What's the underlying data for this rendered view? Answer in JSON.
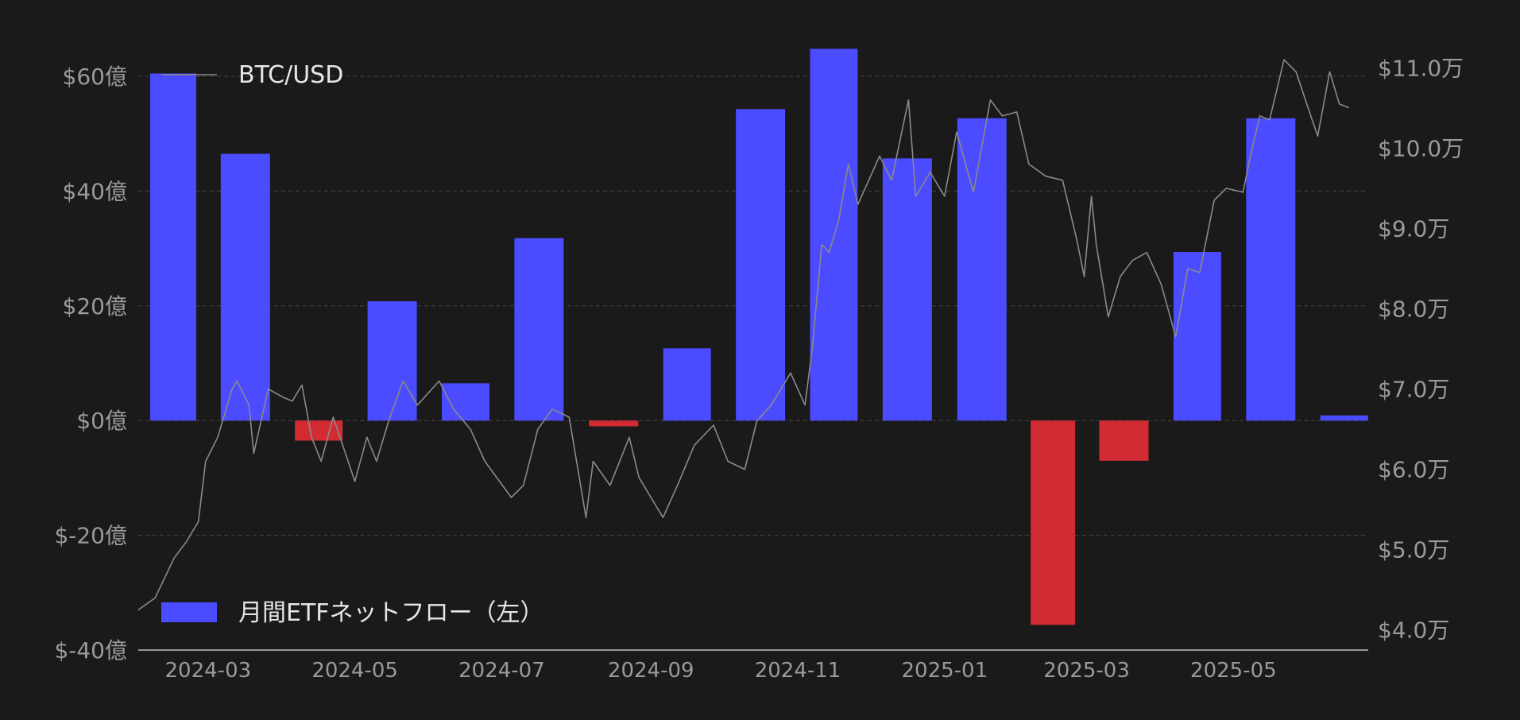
{
  "chart_data": {
    "type": "bar",
    "categories": [
      "2024-02",
      "2024-03",
      "2024-04",
      "2024-05",
      "2024-06",
      "2024-07",
      "2024-08",
      "2024-09",
      "2024-10",
      "2024-11",
      "2024-12",
      "2025-01",
      "2025-02",
      "2025-03",
      "2025-04",
      "2025-05",
      "2025-06"
    ],
    "series": [
      {
        "name": "月間ETFネットフロー（左）",
        "type": "bar",
        "axis": "left",
        "values": [
          60.5,
          46.5,
          -3.5,
          20.8,
          6.5,
          31.8,
          -1.0,
          12.6,
          54.3,
          64.8,
          45.7,
          52.7,
          -35.6,
          -7.0,
          29.4,
          52.7,
          0.9
        ]
      },
      {
        "name": "BTC/USD",
        "type": "line",
        "axis": "right",
        "points": [
          [
            "2024-02-01",
            42500
          ],
          [
            "2024-02-08",
            44000
          ],
          [
            "2024-02-12",
            46500
          ],
          [
            "2024-02-16",
            49000
          ],
          [
            "2024-02-21",
            51000
          ],
          [
            "2024-02-26",
            53500
          ],
          [
            "2024-02-29",
            61000
          ],
          [
            "2024-03-05",
            64000
          ],
          [
            "2024-03-08",
            67000
          ],
          [
            "2024-03-11",
            70000
          ],
          [
            "2024-03-13",
            71000
          ],
          [
            "2024-03-18",
            68000
          ],
          [
            "2024-03-20",
            62000
          ],
          [
            "2024-03-26",
            70000
          ],
          [
            "2024-04-01",
            69000
          ],
          [
            "2024-04-05",
            68500
          ],
          [
            "2024-04-09",
            70500
          ],
          [
            "2024-04-13",
            64000
          ],
          [
            "2024-04-17",
            61000
          ],
          [
            "2024-04-22",
            66500
          ],
          [
            "2024-05-01",
            58500
          ],
          [
            "2024-05-06",
            64000
          ],
          [
            "2024-05-10",
            61000
          ],
          [
            "2024-05-15",
            66000
          ],
          [
            "2024-05-21",
            71000
          ],
          [
            "2024-05-27",
            68000
          ],
          [
            "2024-06-05",
            71000
          ],
          [
            "2024-06-11",
            67500
          ],
          [
            "2024-06-18",
            65000
          ],
          [
            "2024-06-24",
            61000
          ],
          [
            "2024-07-05",
            56500
          ],
          [
            "2024-07-10",
            58000
          ],
          [
            "2024-07-16",
            65000
          ],
          [
            "2024-07-22",
            67500
          ],
          [
            "2024-07-29",
            66500
          ],
          [
            "2024-08-05",
            54000
          ],
          [
            "2024-08-08",
            61000
          ],
          [
            "2024-08-15",
            58000
          ],
          [
            "2024-08-23",
            64000
          ],
          [
            "2024-08-27",
            59000
          ],
          [
            "2024-09-06",
            54000
          ],
          [
            "2024-09-12",
            58000
          ],
          [
            "2024-09-19",
            63000
          ],
          [
            "2024-09-27",
            65500
          ],
          [
            "2024-10-03",
            61000
          ],
          [
            "2024-10-10",
            60000
          ],
          [
            "2024-10-15",
            66000
          ],
          [
            "2024-10-21",
            68000
          ],
          [
            "2024-10-29",
            72000
          ],
          [
            "2024-11-04",
            68000
          ],
          [
            "2024-11-07",
            75000
          ],
          [
            "2024-11-11",
            88000
          ],
          [
            "2024-11-14",
            87000
          ],
          [
            "2024-11-18",
            91000
          ],
          [
            "2024-11-22",
            98000
          ],
          [
            "2024-11-26",
            93000
          ],
          [
            "2024-12-05",
            99000
          ],
          [
            "2024-12-10",
            96000
          ],
          [
            "2024-12-17",
            106000
          ],
          [
            "2024-12-20",
            94000
          ],
          [
            "2024-12-26",
            97000
          ],
          [
            "2025-01-01",
            94000
          ],
          [
            "2025-01-06",
            102000
          ],
          [
            "2025-01-13",
            94500
          ],
          [
            "2025-01-20",
            106000
          ],
          [
            "2025-01-25",
            104000
          ],
          [
            "2025-01-31",
            104500
          ],
          [
            "2025-02-05",
            98000
          ],
          [
            "2025-02-12",
            96500
          ],
          [
            "2025-02-19",
            96000
          ],
          [
            "2025-02-25",
            88500
          ],
          [
            "2025-02-28",
            84000
          ],
          [
            "2025-03-03",
            94000
          ],
          [
            "2025-03-05",
            88000
          ],
          [
            "2025-03-10",
            79000
          ],
          [
            "2025-03-15",
            84000
          ],
          [
            "2025-03-20",
            86000
          ],
          [
            "2025-03-26",
            87000
          ],
          [
            "2025-04-01",
            83000
          ],
          [
            "2025-04-07",
            76500
          ],
          [
            "2025-04-12",
            85000
          ],
          [
            "2025-04-17",
            84500
          ],
          [
            "2025-04-23",
            93500
          ],
          [
            "2025-04-28",
            95000
          ],
          [
            "2025-05-05",
            94500
          ],
          [
            "2025-05-08",
            99000
          ],
          [
            "2025-05-12",
            104000
          ],
          [
            "2025-05-16",
            103500
          ],
          [
            "2025-05-22",
            111000
          ],
          [
            "2025-05-27",
            109500
          ],
          [
            "2025-06-01",
            105000
          ],
          [
            "2025-06-05",
            101500
          ],
          [
            "2025-06-10",
            109500
          ],
          [
            "2025-06-14",
            105500
          ],
          [
            "2025-06-18",
            105000
          ]
        ]
      }
    ],
    "y_left": {
      "ylim": [
        -40,
        65
      ],
      "ticks": [
        -40,
        -20,
        0,
        20,
        40,
        60
      ],
      "tick_labels": [
        "$-40億",
        "$-20億",
        "$0億",
        "$20億",
        "$40億",
        "$60億"
      ]
    },
    "y_right": {
      "ylim": [
        37500,
        112500
      ],
      "ticks": [
        40000,
        50000,
        60000,
        70000,
        80000,
        90000,
        100000,
        110000
      ],
      "tick_labels": [
        "$4.0万",
        "$5.0万",
        "$6.0万",
        "$7.0万",
        "$8.0万",
        "$9.0万",
        "$10.0万",
        "$11.0万"
      ]
    },
    "x_ticks": [
      "2024-03-01",
      "2024-05-01",
      "2024-07-01",
      "2024-09-01",
      "2024-11-01",
      "2025-01-01",
      "2025-03-01",
      "2025-05-01"
    ],
    "x_tick_labels": [
      "2024-03",
      "2024-05",
      "2024-07",
      "2024-09",
      "2024-11",
      "2025-01",
      "2025-03",
      "2025-05"
    ],
    "xlim": [
      "2024-02-01",
      "2025-06-26"
    ],
    "grid": true,
    "legend": [
      {
        "label": "BTC/USD",
        "placement": "top-left"
      },
      {
        "label": "月間ETFネットフロー（左）",
        "placement": "bottom-left"
      }
    ],
    "colors": {
      "positive": "#4b4bff",
      "negative": "#d32b33",
      "line": "#8a8a8a",
      "background": "#1a1a1a",
      "grid": "#444444"
    }
  }
}
